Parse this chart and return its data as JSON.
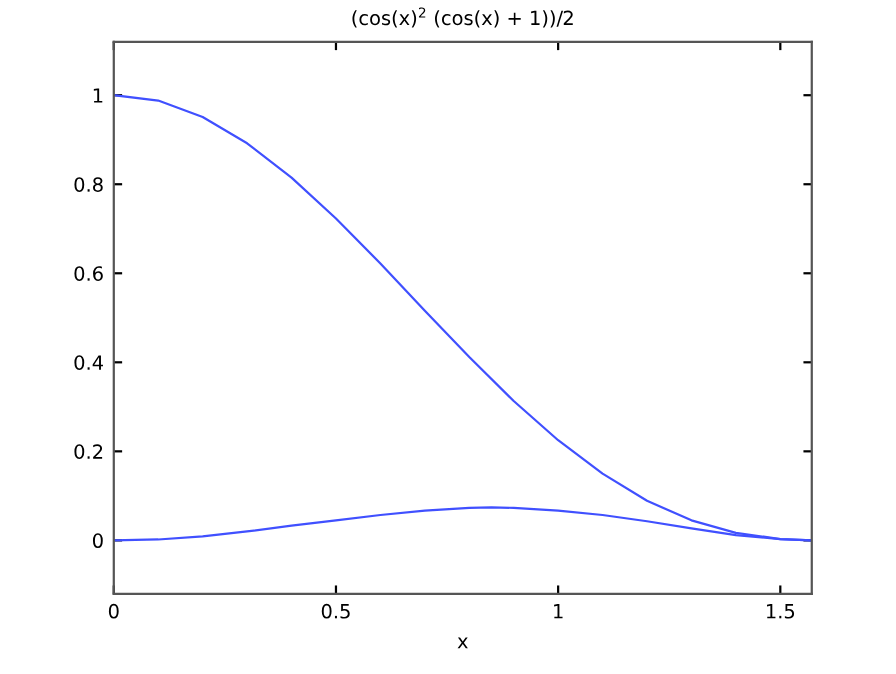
{
  "chart_data": {
    "type": "line",
    "title": "(cos(x)$^{2}$ (cos(x) + 1))/2",
    "xlabel": "x",
    "xlim": [
      0,
      1.5708
    ],
    "xticks": [
      0,
      0.5,
      1,
      1.5
    ],
    "ylim": [
      -0.12,
      1.12
    ],
    "yticks": [
      0,
      0.2,
      0.4,
      0.6,
      0.8,
      1
    ],
    "grid": false,
    "legend": false,
    "marker": "none",
    "line_style": "solid",
    "series": [
      {
        "color": "#4050ff",
        "x": [
          0,
          0.1,
          0.2,
          0.3,
          0.4,
          0.5,
          0.6,
          0.7,
          0.8,
          0.9,
          1.0,
          1.1,
          1.2,
          1.3,
          1.4,
          1.5,
          1.5708
        ],
        "values": [
          1,
          0.988,
          0.951,
          0.892,
          0.815,
          0.723,
          0.622,
          0.516,
          0.412,
          0.313,
          0.225,
          0.15,
          0.089,
          0.045,
          0.017,
          0.003,
          0
        ]
      },
      {
        "color": "#4050ff",
        "x": [
          0,
          0.1,
          0.2,
          0.3,
          0.4,
          0.5,
          0.6,
          0.7,
          0.8,
          0.85,
          0.9,
          1.0,
          1.1,
          1.2,
          1.3,
          1.4,
          1.5,
          1.5708
        ],
        "values": [
          0,
          0.002,
          0.009,
          0.02,
          0.033,
          0.045,
          0.057,
          0.067,
          0.073,
          0.074,
          0.073,
          0.067,
          0.057,
          0.043,
          0.027,
          0.012,
          0.003,
          0
        ]
      }
    ]
  }
}
